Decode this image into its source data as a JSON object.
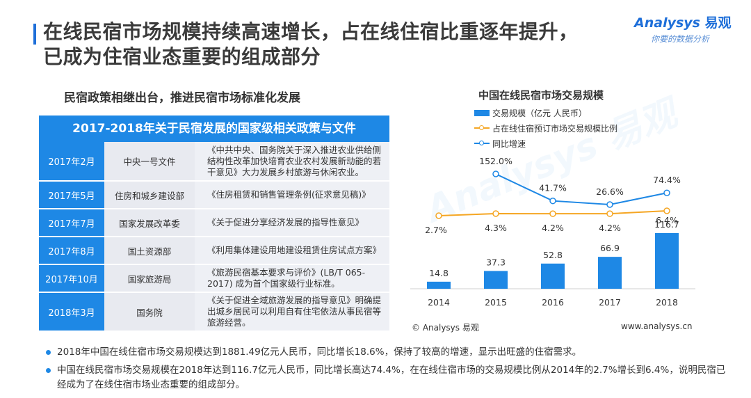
{
  "page": {
    "title_line1": "在线民宿市场规模持续高速增长，占在线住宿比重逐年提升，",
    "title_line2": "已成为住宿业态重要的组成部分"
  },
  "logo": {
    "brand": "nalysys",
    "brand_prefix": "A",
    "brand_cn": "易观",
    "slogan": "你要的数据分析"
  },
  "left": {
    "heading": "民宿政策相继出台，推进民宿市场标准化发展",
    "table_title": "2017-2018年关于民宿发展的国家级相关政策与文件",
    "rows": [
      {
        "date": "2017年2月",
        "dept": "中央一号文件",
        "doc": "《中共中央、国务院关于深入推进农业供给侧结构性改革加快培育农业农村发展新动能的若干意见》大力发展乡村旅游与休闲农业。"
      },
      {
        "date": "2017年5月",
        "dept": "住房和城乡建设部",
        "doc": "《住房租赁和销售管理条例(征求意见稿)》"
      },
      {
        "date": "2017年7月",
        "dept": "国家发展改革委",
        "doc": "《关于促进分享经济发展的指导性意见》"
      },
      {
        "date": "2017年8月",
        "dept": "国土资源部",
        "doc": "《利用集体建设用地建设租赁住房试点方案》"
      },
      {
        "date": "2017年10月",
        "dept": "国家旅游局",
        "doc": "《旅游民宿基本要求与评价》(LB/T 065-2017) 成为首个国家级行业标准。"
      },
      {
        "date": "2018年3月",
        "dept": "国务院",
        "doc": "《关于促进全域旅游发展的指导意见》明确提出城乡居民可以利用自有住宅依法从事民宿等旅游经营。"
      }
    ]
  },
  "chart_data": {
    "type": "bar",
    "title": "中国在线民宿市场交易规模",
    "categories": [
      "2014",
      "2015",
      "2016",
      "2017",
      "2018"
    ],
    "series": [
      {
        "name": "交易规模（亿元 人民币）",
        "kind": "bar",
        "values": [
          14.8,
          37.3,
          52.8,
          66.9,
          116.7
        ],
        "labels": [
          "14.8",
          "37.3",
          "52.8",
          "66.9",
          "116.7"
        ],
        "color": "#1e88e5"
      },
      {
        "name": "占在线住宿预订市场交易规模比例",
        "kind": "line",
        "values": [
          2.7,
          4.3,
          4.2,
          4.2,
          6.4
        ],
        "labels": [
          "2.7%",
          "4.3%",
          "4.2%",
          "4.2%",
          "6.4%"
        ],
        "color": "#f5a623"
      },
      {
        "name": "同比增速",
        "kind": "line",
        "values": [
          null,
          152.0,
          41.7,
          26.6,
          74.4
        ],
        "labels": [
          "",
          "152.0%",
          "41.7%",
          "26.6%",
          "74.4%"
        ],
        "color": "#1e88e5"
      }
    ],
    "legend_position": "top-left",
    "grid": false,
    "source": "© Analysys 易观",
    "url": "www.analysys.cn"
  },
  "bullets": [
    "2018年中国在线住宿市场交易规模达到1881.49亿元人民币，同比增长18.6%，保持了较高的增速，显示出旺盛的住宿需求。",
    "中国在线民宿市场交易规模在2018年达到116.7亿元人民币，同比增长高达74.4%，在在线住宿市场的交易规模比例从2014年的2.7%增长到6.4%，说明民宿已经成为了在线住宿市场业态重要的组成部分。"
  ]
}
